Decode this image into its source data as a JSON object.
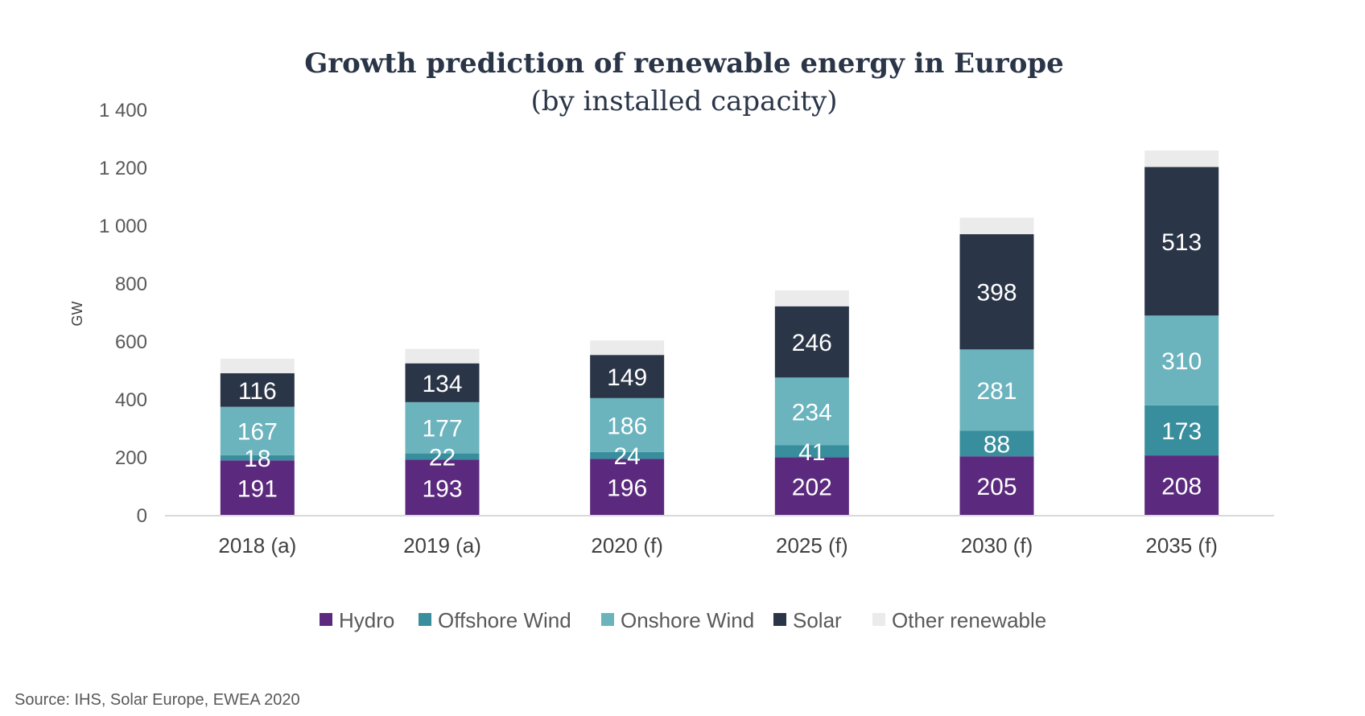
{
  "chart_data": {
    "type": "bar",
    "stacked": true,
    "title": "Growth prediction of renewable energy in Europe",
    "subtitle": "(by installed capacity)",
    "xlabel": "",
    "ylabel": "GW",
    "ylim": [
      0,
      1400
    ],
    "yticks": [
      0,
      200,
      400,
      600,
      800,
      1000,
      1200,
      1400
    ],
    "ytick_labels": [
      "0",
      "200",
      "400",
      "600",
      "800",
      "1 000",
      "1 200",
      "1 400"
    ],
    "grid": false,
    "legend_position": "bottom",
    "categories": [
      "2018 (a)",
      "2019 (a)",
      "2020 (f)",
      "2025 (f)",
      "2030 (f)",
      "2035 (f)"
    ],
    "series": [
      {
        "name": "Hydro",
        "color": "#5b2a7e",
        "values": [
          191,
          193,
          196,
          202,
          205,
          208
        ],
        "labeled": true
      },
      {
        "name": "Offshore Wind",
        "color": "#388e9c",
        "values": [
          18,
          22,
          24,
          41,
          88,
          173
        ],
        "labeled": true
      },
      {
        "name": "Onshore Wind",
        "color": "#6bb3bd",
        "values": [
          167,
          177,
          186,
          234,
          281,
          310
        ],
        "labeled": true
      },
      {
        "name": "Solar",
        "color": "#2a3547",
        "values": [
          116,
          134,
          149,
          246,
          398,
          513
        ],
        "labeled": true
      },
      {
        "name": "Other renewable",
        "color": "#ebebeb",
        "values": [
          50,
          50,
          50,
          55,
          57,
          57
        ],
        "labeled": false
      }
    ],
    "source": "Source: IHS, Solar Europe, EWEA 2020"
  }
}
